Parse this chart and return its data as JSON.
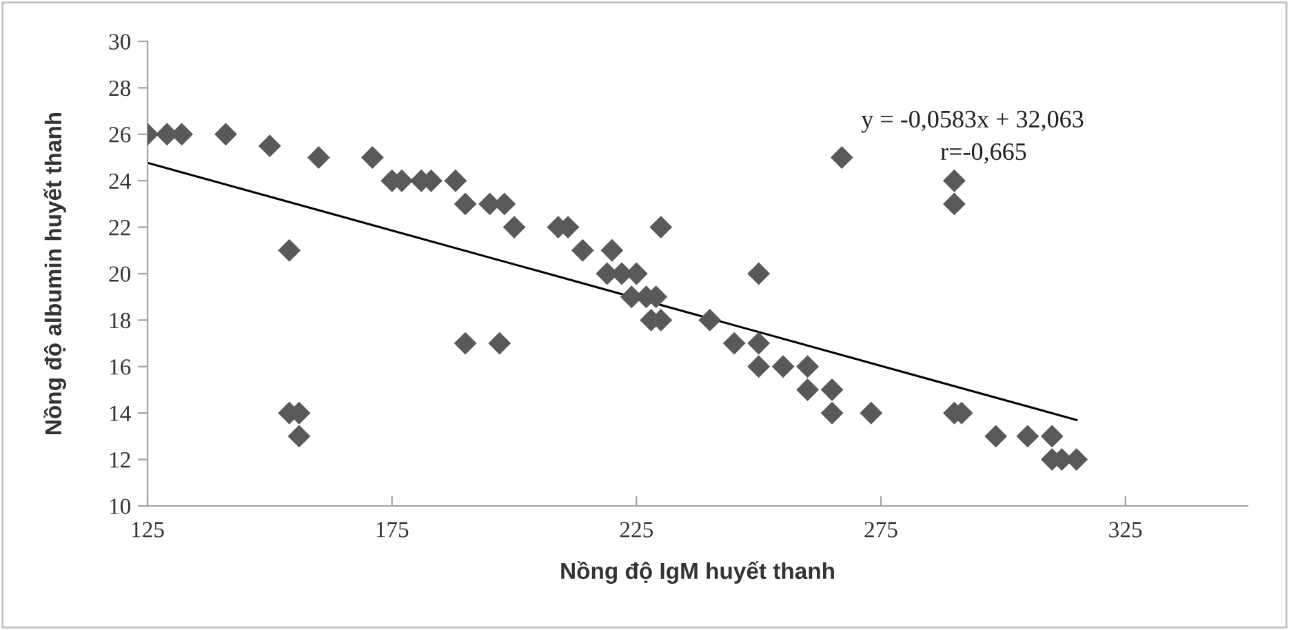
{
  "chart_data": {
    "type": "scatter",
    "xlabel": "Nồng độ IgM huyết thanh",
    "ylabel": "Nồng độ albumin huyết thanh",
    "xlim": [
      125,
      350
    ],
    "xticks": [
      125,
      175,
      225,
      275,
      325
    ],
    "ylim": [
      10,
      30
    ],
    "yticks": [
      10,
      12,
      14,
      16,
      18,
      20,
      22,
      24,
      26,
      28,
      30
    ],
    "grid": false,
    "legend": false,
    "annotations": [
      "y = -0,0583x + 32,063",
      "r=-0,665"
    ],
    "series": [
      {
        "color": "#595959",
        "marker": "diamond",
        "x": [
          125,
          129,
          132,
          141,
          150,
          154,
          160,
          154,
          156,
          156,
          171,
          175,
          177,
          181,
          183,
          188,
          190,
          195,
          197,
          198,
          200,
          209,
          211,
          190,
          197,
          214,
          215,
          220,
          219,
          222,
          225,
          230,
          224,
          227,
          229,
          228,
          230,
          240,
          250,
          245,
          250,
          250,
          255,
          260,
          260,
          265,
          265,
          273,
          267,
          290,
          290,
          290,
          291.5,
          298.5,
          304,
          305,
          310,
          310,
          312,
          315
        ],
        "values": [
          26,
          26,
          26,
          26,
          25.5,
          21,
          25,
          14,
          14,
          13,
          25,
          24,
          24,
          24,
          24,
          24,
          23,
          23,
          null,
          23,
          22,
          22,
          22,
          17,
          17,
          21,
          null,
          21,
          20,
          20,
          20,
          22,
          19,
          19,
          19,
          18,
          18,
          18,
          20,
          17,
          17,
          16,
          16,
          16,
          15,
          15,
          14,
          14,
          25,
          24,
          23,
          14,
          14,
          13,
          null,
          13,
          13,
          12,
          12,
          12
        ]
      },
      {
        "type": "line",
        "color": "#000000",
        "x": [
          125,
          315
        ],
        "values": [
          24.77,
          13.7
        ]
      }
    ]
  }
}
